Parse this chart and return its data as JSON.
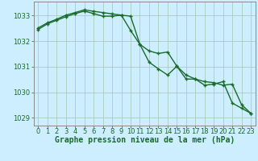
{
  "background_color": "#cceeff",
  "grid_color": "#aaccbb",
  "line_color": "#1a6b2a",
  "marker_color": "#1a6b2a",
  "xlabel": "Graphe pression niveau de la mer (hPa)",
  "xlim": [
    -0.5,
    23.5
  ],
  "ylim": [
    1028.7,
    1033.55
  ],
  "yticks": [
    1029,
    1030,
    1031,
    1032,
    1033
  ],
  "xticks": [
    0,
    1,
    2,
    3,
    4,
    5,
    6,
    7,
    8,
    9,
    10,
    11,
    12,
    13,
    14,
    15,
    16,
    17,
    18,
    19,
    20,
    21,
    22,
    23
  ],
  "series1_x": [
    0,
    1,
    2,
    3,
    4,
    5,
    6,
    7,
    8,
    9,
    10,
    11,
    12,
    13,
    14,
    15,
    16,
    17,
    18,
    19,
    20,
    21,
    22,
    23
  ],
  "series1_y": [
    1032.52,
    1032.72,
    1032.86,
    1033.02,
    1033.12,
    1033.23,
    1033.17,
    1033.12,
    1033.07,
    1033.02,
    1032.42,
    1031.88,
    1031.62,
    1031.52,
    1031.58,
    1031.02,
    1030.68,
    1030.52,
    1030.42,
    1030.38,
    1030.28,
    1030.32,
    1029.52,
    1029.18
  ],
  "series2_x": [
    0,
    1,
    2,
    3,
    4,
    5,
    6,
    7,
    8,
    9,
    10,
    11,
    12,
    13,
    14,
    15,
    16,
    17,
    18,
    19,
    20,
    21,
    22,
    23
  ],
  "series2_y": [
    1032.46,
    1032.68,
    1032.82,
    1032.96,
    1033.08,
    1033.18,
    1033.08,
    1032.98,
    1032.98,
    1033.02,
    1032.98,
    1031.88,
    1031.18,
    1030.92,
    1030.68,
    1031.02,
    1030.52,
    1030.52,
    1030.28,
    1030.32,
    1030.42,
    1029.58,
    1029.38,
    1029.18
  ],
  "xlabel_fontsize": 7,
  "tick_fontsize": 6,
  "line_width": 1.0,
  "marker_size": 3.5
}
